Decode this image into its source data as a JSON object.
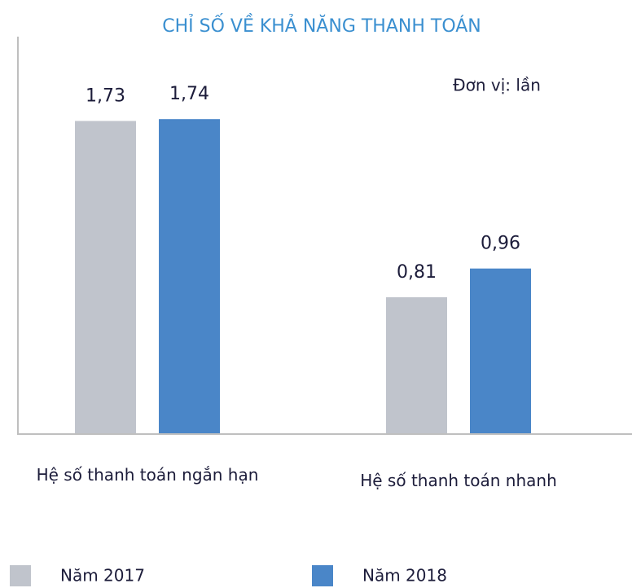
{
  "chart_data": {
    "type": "bar",
    "title": "CHỈ SỐ VỀ KHẢ NĂNG THANH TOÁN",
    "annotation": "Đơn vị: lần",
    "categories": [
      "Hệ số thanh toán ngắn hạn",
      "Hệ số thanh toán nhanh"
    ],
    "series": [
      {
        "name": "Năm 2017",
        "color": "#c0c4cc",
        "values": [
          1.73,
          0.81
        ],
        "value_labels": [
          "1,73",
          "0,81"
        ]
      },
      {
        "name": "Năm 2018",
        "color": "#4a86c8",
        "values": [
          1.74,
          0.96
        ],
        "value_labels": [
          "1,74",
          "0,96"
        ]
      }
    ],
    "ylim": [
      0.1,
      2.2
    ],
    "legend": "bottom"
  }
}
